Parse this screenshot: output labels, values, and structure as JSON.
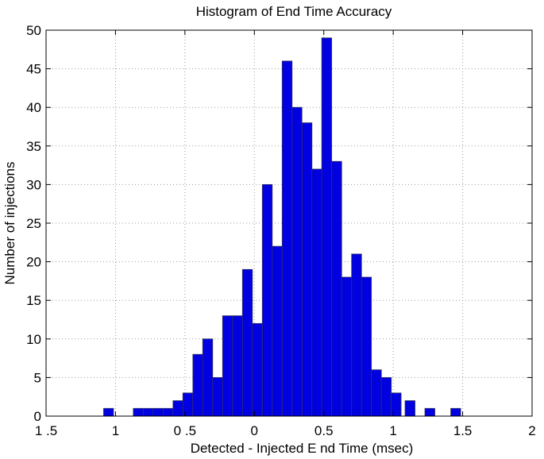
{
  "chart_data": {
    "type": "bar",
    "title": "Histogram of End Time Accuracy",
    "xlabel": "Detected  - Injected E nd Time (msec)",
    "ylabel": "Number of injections",
    "xlim": [
      -1.5,
      2
    ],
    "ylim": [
      0,
      50
    ],
    "x_ticks": [
      -1.5,
      -1,
      -0.5,
      0,
      0.5,
      1,
      1.5,
      2
    ],
    "x_tick_labels": [
      "1 .5",
      "1",
      "0 .5",
      "0",
      "0.5",
      "1",
      "1.5",
      "2"
    ],
    "y_ticks": [
      0,
      5,
      10,
      15,
      20,
      25,
      30,
      35,
      40,
      45,
      50
    ],
    "y_tick_labels": [
      "0",
      "5",
      "10",
      "15",
      "20",
      "25",
      "30",
      "35",
      "40",
      "45",
      "50"
    ],
    "grid": true,
    "bar_color": "#0000e0",
    "bar_edge_color": "#303060",
    "bin_width": 0.0714,
    "bin_centers": [
      -1.05,
      -0.836,
      -0.764,
      -0.693,
      -0.621,
      -0.55,
      -0.479,
      -0.407,
      -0.336,
      -0.264,
      -0.193,
      -0.121,
      -0.05,
      0.021,
      0.093,
      0.164,
      0.236,
      0.307,
      0.379,
      0.45,
      0.521,
      0.593,
      0.664,
      0.736,
      0.807,
      0.879,
      0.95,
      1.021,
      1.121,
      1.264,
      1.45
    ],
    "values": [
      1,
      1,
      1,
      1,
      1,
      2,
      3,
      8,
      10,
      5,
      13,
      13,
      19,
      12,
      30,
      22,
      46,
      40,
      38,
      32,
      49,
      33,
      18,
      21,
      18,
      6,
      5,
      3,
      2,
      1,
      1
    ]
  }
}
